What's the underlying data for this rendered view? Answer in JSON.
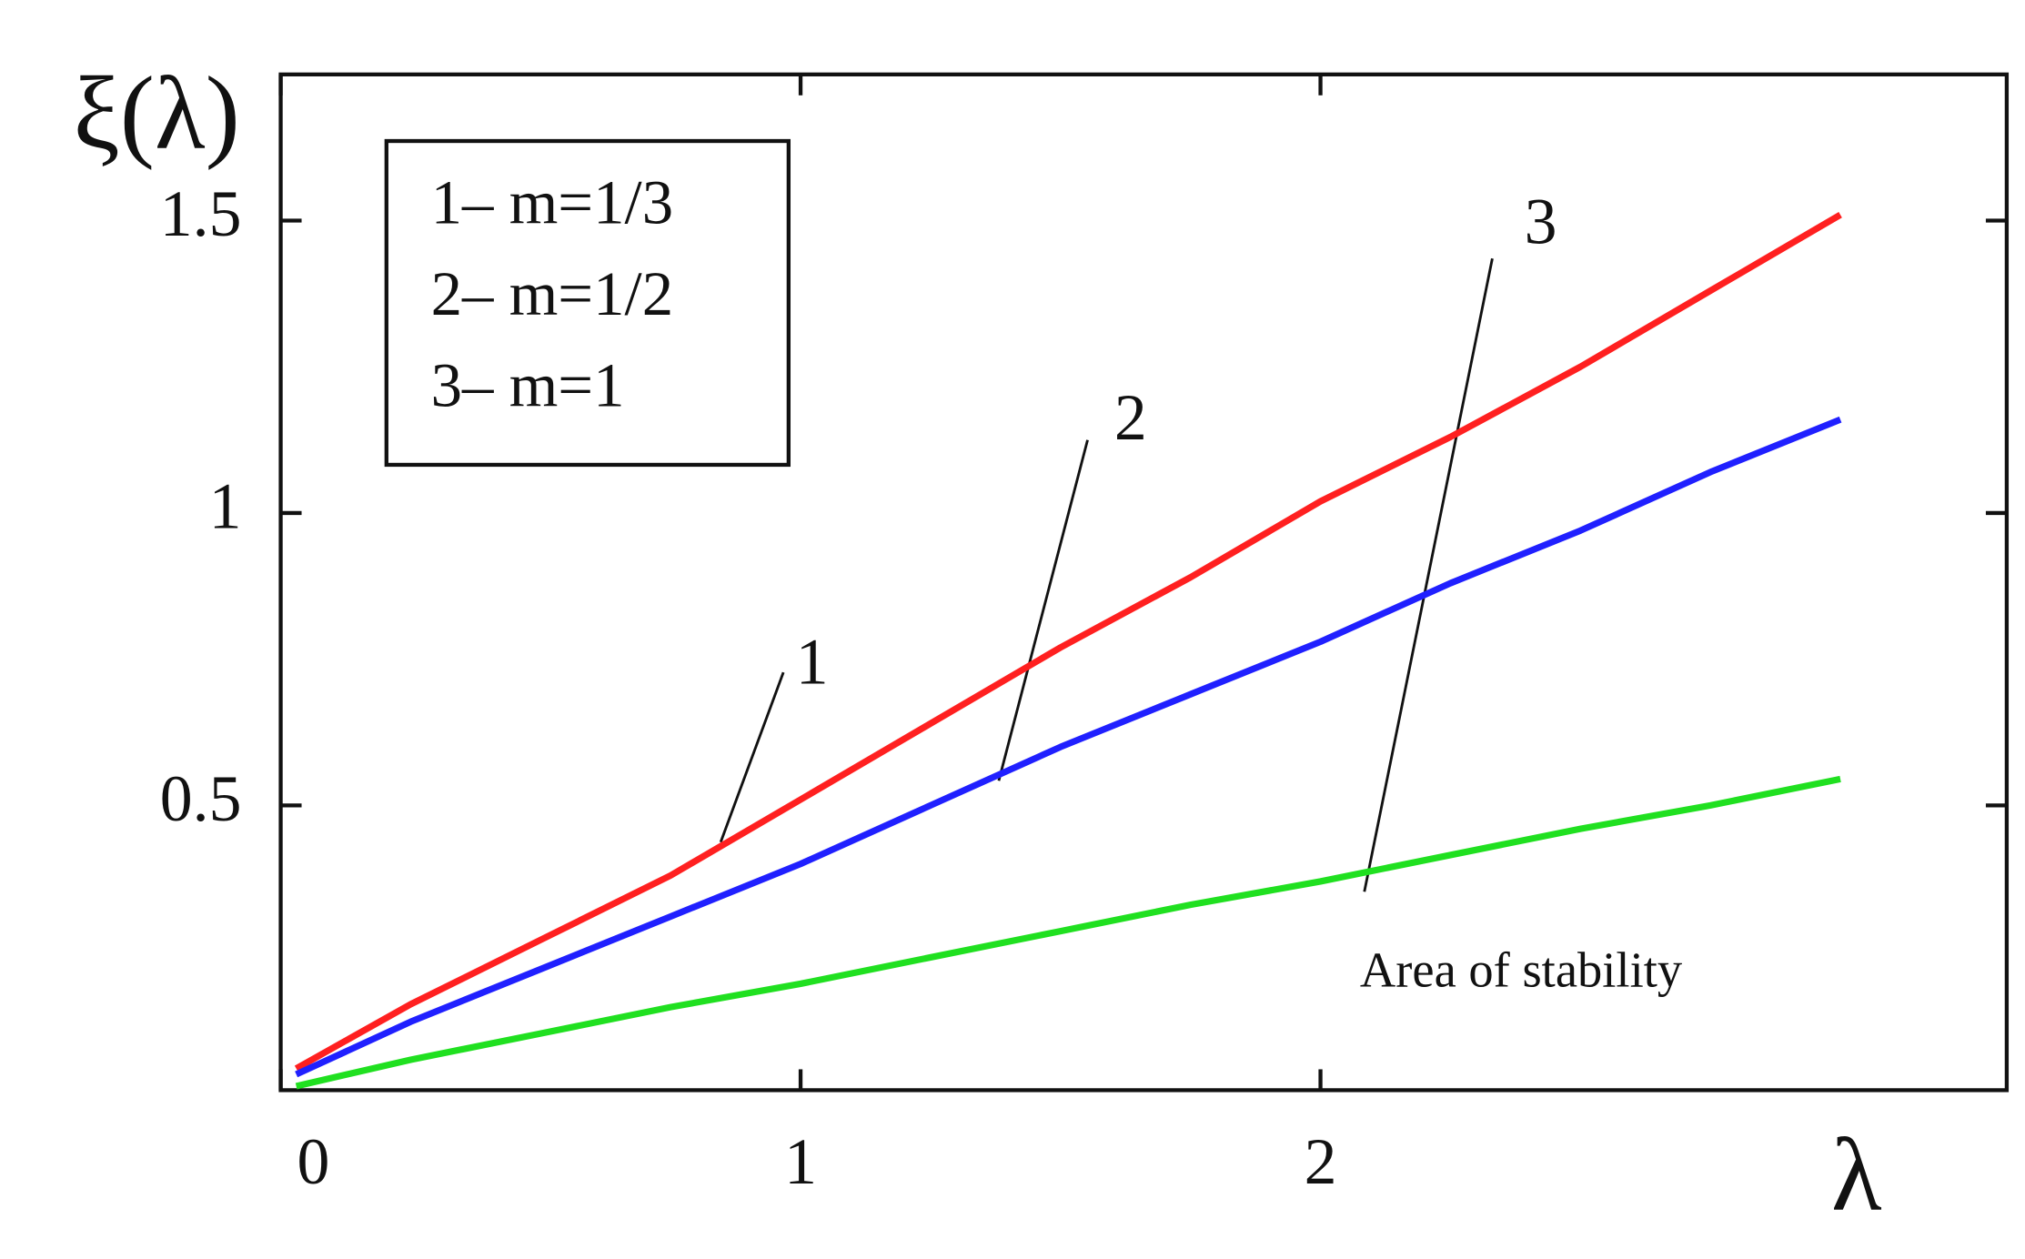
{
  "chart_data": {
    "type": "line",
    "ylabel": "ξ(λ)",
    "xlabel": "λ",
    "x": [
      0.03,
      0.25,
      0.5,
      0.75,
      1,
      1.25,
      1.5,
      1.75,
      2,
      2.25,
      2.5,
      2.75,
      3
    ],
    "series": [
      {
        "name": "1– m=1/3",
        "label": "1",
        "color": "#ff2020",
        "values": [
          0.05,
          0.16,
          0.27,
          0.38,
          0.51,
          0.64,
          0.77,
          0.89,
          1.02,
          1.13,
          1.25,
          1.38,
          1.51
        ]
      },
      {
        "name": "2– m=1/2",
        "label": "2",
        "color": "#2020ff",
        "values": [
          0.04,
          0.13,
          0.22,
          0.31,
          0.4,
          0.5,
          0.6,
          0.69,
          0.78,
          0.88,
          0.97,
          1.07,
          1.16
        ]
      },
      {
        "name": "3– m=1",
        "label": "3",
        "color": "#20e020",
        "values": [
          0.02,
          0.065,
          0.11,
          0.155,
          0.195,
          0.24,
          0.285,
          0.33,
          0.37,
          0.415,
          0.46,
          0.5,
          0.545
        ]
      }
    ],
    "annotation": "Area of stability",
    "xlim": [
      0,
      3.32
    ],
    "ylim": [
      0.013,
      1.75
    ],
    "xticks": [
      0,
      1,
      2
    ],
    "yticks": [
      0.5,
      1,
      1.5
    ]
  }
}
